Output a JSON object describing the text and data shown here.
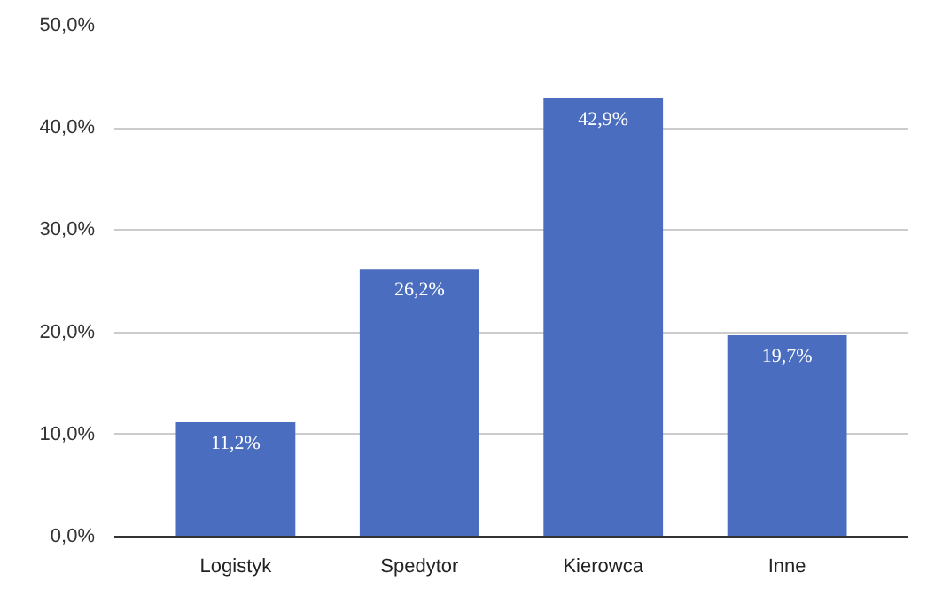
{
  "chart_data": {
    "type": "bar",
    "categories": [
      "Logistyk",
      "Spedytor",
      "Kierowca",
      "Inne"
    ],
    "values": [
      11.2,
      26.2,
      42.9,
      19.7
    ],
    "value_labels": [
      "11,2%",
      "26,2%",
      "42,9%",
      "19,7%"
    ],
    "color": "#4a6dbf",
    "ylim": [
      0,
      50
    ],
    "yticks": [
      {
        "value": 0,
        "label": "0,0%"
      },
      {
        "value": 10,
        "label": "10,0%"
      },
      {
        "value": 20,
        "label": "20,0%"
      },
      {
        "value": 30,
        "label": "30,0%"
      },
      {
        "value": 40,
        "label": "40,0%"
      },
      {
        "value": 50,
        "label": "50,0%"
      }
    ],
    "grid": "y"
  }
}
